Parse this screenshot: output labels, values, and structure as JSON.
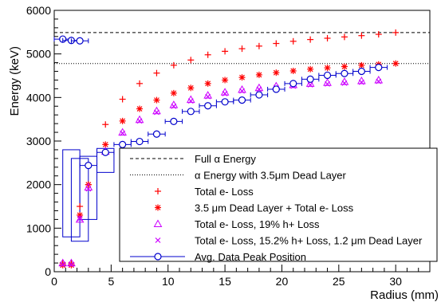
{
  "chart_data": {
    "type": "scatter",
    "xlabel": "Radius (mm)",
    "ylabel": "Energy (keV)",
    "xlim": [
      0,
      33
    ],
    "ylim": [
      0,
      6000
    ],
    "x_ticks": [
      0,
      5,
      10,
      15,
      20,
      25,
      30
    ],
    "y_ticks": [
      0,
      1000,
      2000,
      3000,
      4000,
      5000,
      6000
    ],
    "grid": false,
    "legend_position": "bottom-right",
    "reference_lines": [
      {
        "name": "Full α Energy",
        "y": 5490,
        "style": "dashed",
        "color": "#000000"
      },
      {
        "name": "α Energy with 3.5μm Dead Layer",
        "y": 4780,
        "style": "dotted",
        "color": "#000000"
      }
    ],
    "series": [
      {
        "name": "Total e- Loss",
        "marker": "plus",
        "color": "#ff0000",
        "x": [
          0.75,
          1.5,
          2.25,
          3.0,
          4.5,
          6.0,
          7.5,
          9.0,
          10.5,
          12.0,
          13.5,
          15.0,
          16.5,
          18.0,
          19.5,
          21.0,
          22.5,
          24.0,
          25.5,
          27.0,
          28.5,
          30.0
        ],
        "y": [
          200,
          200,
          1500,
          2000,
          3380,
          3960,
          4320,
          4560,
          4740,
          4860,
          4980,
          5060,
          5120,
          5180,
          5240,
          5290,
          5330,
          5360,
          5390,
          5420,
          5450,
          5490
        ]
      },
      {
        "name": "3.5 μm Dead Layer + Total e- Loss",
        "marker": "star",
        "color": "#ff0000",
        "x": [
          0.75,
          1.5,
          2.25,
          3.0,
          4.5,
          6.0,
          7.5,
          9.0,
          10.5,
          12.0,
          13.5,
          15.0,
          16.5,
          18.0,
          19.5,
          21.0,
          22.5,
          24.0,
          25.5,
          27.0,
          28.5,
          30.0
        ],
        "y": [
          150,
          150,
          1300,
          2000,
          2920,
          3460,
          3740,
          3940,
          4100,
          4220,
          4320,
          4400,
          4460,
          4520,
          4570,
          4610,
          4650,
          4680,
          4710,
          4740,
          4760,
          4780
        ]
      },
      {
        "name": "Total e- Loss, 19% h+ Loss",
        "marker": "triangle",
        "color": "#cc00ff",
        "x": [
          0.75,
          1.5,
          2.25,
          3.0,
          4.5,
          6.0,
          7.5,
          9.0,
          10.5,
          12.0,
          13.5,
          15.0,
          16.5,
          18.0,
          19.5,
          21.0,
          22.5,
          24.0,
          25.5,
          27.0,
          28.5
        ],
        "y": [
          200,
          200,
          1200,
          1940,
          2760,
          3200,
          3490,
          3690,
          3830,
          3950,
          4050,
          4120,
          4180,
          4220,
          4260,
          4290,
          4320,
          4340,
          4360,
          4380,
          4400
        ]
      },
      {
        "name": "Total e- Loss, 15.2% h+ Loss, 1.2 μm Dead Layer",
        "marker": "cross",
        "color": "#cc00ff",
        "x": [
          0.75,
          1.5,
          2.25,
          3.0,
          4.5,
          6.0,
          7.5,
          9.0,
          10.5,
          12.0,
          13.5,
          15.0,
          16.5,
          18.0,
          19.5,
          21.0,
          22.5,
          24.0,
          25.5,
          27.0,
          28.5
        ],
        "y": [
          170,
          170,
          1220,
          1900,
          2740,
          3180,
          3460,
          3660,
          3800,
          3920,
          4020,
          4090,
          4150,
          4190,
          4230,
          4260,
          4290,
          4310,
          4330,
          4350,
          4370
        ]
      },
      {
        "name": "Avg. Data Peak Position",
        "marker": "circle",
        "color": "#0000cc",
        "x": [
          0.75,
          1.5,
          2.25,
          3.0,
          4.5,
          6.0,
          7.5,
          9.0,
          10.5,
          12.0,
          13.5,
          15.0,
          16.5,
          18.0,
          19.5,
          21.0,
          22.5,
          24.0,
          25.5,
          27.0,
          28.5
        ],
        "y": [
          5340,
          5310,
          5300,
          2440,
          2740,
          2920,
          2990,
          3160,
          3450,
          3680,
          3810,
          3900,
          3940,
          4060,
          4190,
          4320,
          4420,
          4510,
          4550,
          4600,
          4690
        ],
        "x_err": [
          0.75,
          0.75,
          0.75,
          0.75,
          0.75,
          0.75,
          0.75,
          0.75,
          0.75,
          0.75,
          0.75,
          0.75,
          0.75,
          0.75,
          0.75,
          0.75,
          0.75,
          0.75,
          0.75,
          0.75,
          0.75
        ]
      }
    ],
    "uncertainty_boxes": [
      {
        "x": [
          0.75,
          2.25
        ],
        "y": [
          800,
          2800
        ]
      },
      {
        "x": [
          1.5,
          3.0
        ],
        "y": [
          700,
          2600
        ]
      },
      {
        "x": [
          2.25,
          3.75
        ],
        "y": [
          1200,
          2650
        ]
      },
      {
        "x": [
          3.75,
          5.25
        ],
        "y": [
          2280,
          2830
        ]
      }
    ]
  }
}
